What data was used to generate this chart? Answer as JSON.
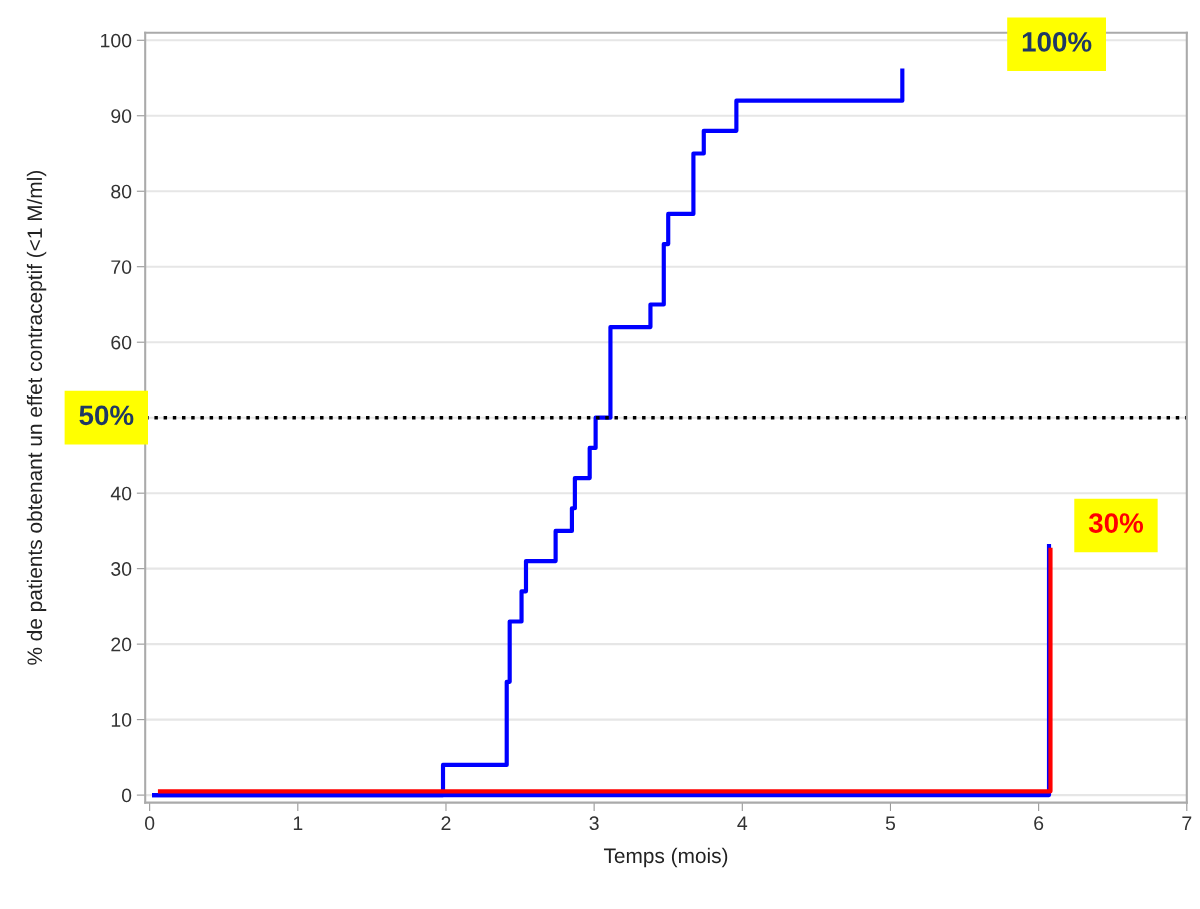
{
  "chart_data": {
    "type": "step",
    "xlabel": "Temps (mois)",
    "ylabel": "% de patients obtenant un effet contraceptif (<1 M/ml)",
    "xlim": [
      -0.03,
      7
    ],
    "xticks": [
      0,
      1,
      2,
      3,
      4,
      5,
      6,
      7
    ],
    "ylim": [
      -1,
      101
    ],
    "yticks": [
      0,
      10,
      20,
      30,
      40,
      {
        "value": 50,
        "label": null
      },
      60,
      70,
      80,
      90,
      100
    ],
    "grid": "y",
    "series": [
      {
        "color": "#0000ff",
        "x": [
          0.03,
          1.98,
          2.41,
          2.43,
          2.51,
          2.54,
          2.74,
          2.85,
          2.87,
          2.97,
          3.01,
          3.11,
          3.38,
          3.47,
          3.5,
          3.67,
          3.74,
          3.96,
          5.08
        ],
        "values": [
          0,
          4,
          15,
          23,
          27,
          31,
          35,
          38,
          42,
          46,
          50,
          62,
          65,
          73,
          77,
          85,
          88,
          92,
          96
        ]
      },
      {
        "color": "#0000ff",
        "x": [
          0.03,
          6.07
        ],
        "values": [
          0,
          33
        ]
      },
      {
        "color": "#ff0000",
        "x": [
          0.07,
          6.08
        ],
        "values": [
          0.5,
          32.5
        ]
      }
    ],
    "ref_lines": [
      {
        "axis": "y",
        "value": 50,
        "label": "50%",
        "color": "#000000",
        "line_style": "dotted"
      }
    ],
    "annotations": [
      "100%",
      "30%"
    ]
  }
}
